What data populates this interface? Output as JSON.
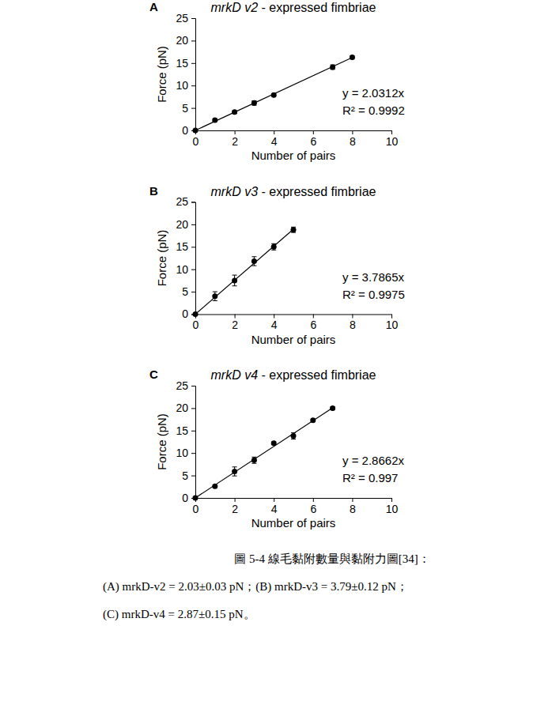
{
  "chart_data": [
    {
      "type": "scatter",
      "panel": "A",
      "title": "mrkD v2 - expressed fimbriae",
      "x_label": "Number of pairs",
      "y_label": "Force (pN)",
      "x": [
        0,
        1,
        2,
        3,
        4,
        7,
        8
      ],
      "values": [
        0,
        2.3,
        4.1,
        6.1,
        7.9,
        14.1,
        16.3
      ],
      "errors": [
        0,
        0.3,
        0.3,
        0.5,
        0.3,
        0.5,
        0.3
      ],
      "color": "#000000",
      "marker": "circle",
      "fit_slope": 2.0312,
      "annotations": [
        "y = 2.0312x",
        "R² = 0.9992"
      ],
      "xlim": [
        0,
        10
      ],
      "xticks": [
        0,
        2,
        4,
        6,
        8,
        10
      ],
      "ylim": [
        0,
        25
      ],
      "yticks": [
        0,
        5,
        10,
        15,
        20,
        25
      ]
    },
    {
      "type": "scatter",
      "panel": "B",
      "title": "mrkD v3 - expressed fimbriae",
      "x_label": "Number of pairs",
      "y_label": "Force (pN)",
      "x": [
        0,
        1,
        2,
        3,
        4,
        5
      ],
      "values": [
        0,
        4.0,
        7.5,
        11.8,
        15.0,
        18.8
      ],
      "errors": [
        0,
        1.0,
        1.2,
        1.0,
        0.7,
        0.6
      ],
      "color": "#000000",
      "marker": "circle",
      "fit_slope": 3.7865,
      "annotations": [
        "y = 3.7865x",
        "R² = 0.9975"
      ],
      "xlim": [
        0,
        10
      ],
      "xticks": [
        0,
        2,
        4,
        6,
        8,
        10
      ],
      "ylim": [
        0,
        25
      ],
      "yticks": [
        0,
        5,
        10,
        15,
        20,
        25
      ]
    },
    {
      "type": "scatter",
      "panel": "C",
      "title": "mrkD v4 - expressed fimbriae",
      "x_label": "Number of pairs",
      "y_label": "Force (pN)",
      "x": [
        0,
        1,
        2,
        3,
        4,
        5,
        6,
        7
      ],
      "values": [
        0,
        2.6,
        5.9,
        8.4,
        12.2,
        13.8,
        17.3,
        20.0
      ],
      "errors": [
        0,
        0.3,
        1.0,
        0.7,
        0.3,
        0.7,
        0.3,
        0.3
      ],
      "color": "#000000",
      "marker": "circle",
      "fit_slope": 2.8662,
      "annotations": [
        "y = 2.8662x",
        "R² = 0.997"
      ],
      "xlim": [
        0,
        10
      ],
      "xticks": [
        0,
        2,
        4,
        6,
        8,
        10
      ],
      "ylim": [
        0,
        25
      ],
      "yticks": [
        0,
        5,
        10,
        15,
        20,
        25
      ]
    }
  ],
  "caption": [
    "圖 5-4 線毛黏附數量與黏附力圖[34]：",
    "(A) mrkD-v2 = 2.03±0.03 pN；(B) mrkD-v3 = 3.79±0.12 pN；",
    "(C) mrkD-v4 = 2.87±0.15 pN。"
  ]
}
